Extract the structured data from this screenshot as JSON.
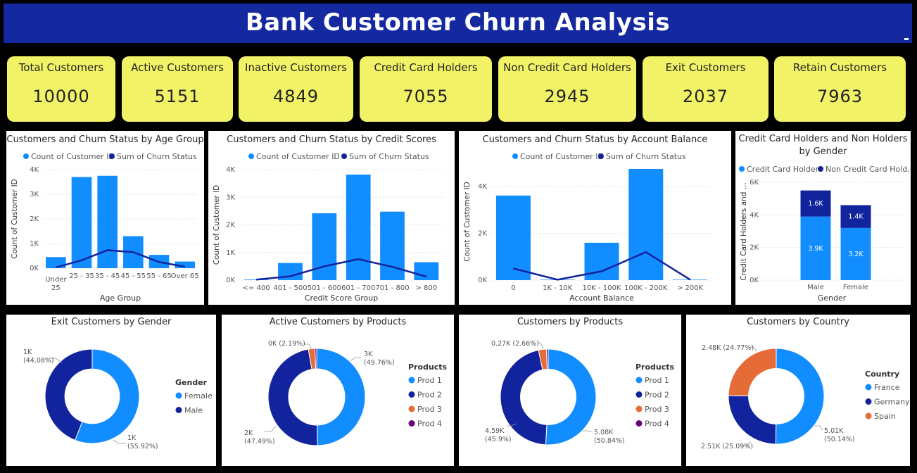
{
  "title": "Bank Customer Churn Analysis",
  "kpis": [
    {
      "label": "Total Customers",
      "value": "10000"
    },
    {
      "label": "Active Customers",
      "value": "5151"
    },
    {
      "label": "Inactive Customers",
      "value": "4849"
    },
    {
      "label": "Credit Card Holders",
      "value": "7055"
    },
    {
      "label": "Non Credit Card Holders",
      "value": "2945"
    },
    {
      "label": "Exit Customers",
      "value": "2037"
    },
    {
      "label": "Retain Customers",
      "value": "7963"
    }
  ],
  "colors": {
    "light": "#118dff",
    "dark": "#12239e",
    "orange": "#e66c37",
    "purple": "#6b007b"
  },
  "chart_data": [
    {
      "id": "age",
      "type": "bar",
      "title": "Customers and Churn Status by Age Group",
      "xlabel": "Age Group",
      "ylabel": "Count of Customer ID",
      "legend": [
        "Count of Customer ID",
        "Sum of Churn Status"
      ],
      "categories": [
        "Under 25",
        "25 - 35",
        "35 - 45",
        "45 - 55",
        "55 - 65",
        "Over 65"
      ],
      "series": [
        {
          "name": "Count of Customer ID",
          "type": "bar",
          "values": [
            450,
            3700,
            3750,
            1300,
            540,
            270
          ]
        },
        {
          "name": "Sum of Churn Status",
          "type": "line",
          "values": [
            30,
            320,
            730,
            650,
            250,
            60
          ]
        }
      ],
      "yticks": [
        "0K",
        "1K",
        "2K",
        "3K",
        "4K"
      ],
      "ylim": [
        0,
        4000
      ]
    },
    {
      "id": "credit",
      "type": "bar",
      "title": "Customers and Churn Status by Credit Scores",
      "xlabel": "Credit Score Group",
      "ylabel": "Count of Customer ID",
      "legend": [
        "Count of Customer ID",
        "Sum of Churn Status"
      ],
      "categories": [
        "<= 400",
        "401 - 500",
        "501 - 600",
        "601 - 700",
        "701 - 800",
        "> 800"
      ],
      "series": [
        {
          "name": "Count of Customer ID",
          "type": "bar",
          "values": [
            20,
            620,
            2420,
            3820,
            2480,
            650
          ]
        },
        {
          "name": "Sum of Churn Status",
          "type": "line",
          "values": [
            20,
            140,
            500,
            760,
            480,
            130
          ]
        }
      ],
      "yticks": [
        "0K",
        "1K",
        "2K",
        "3K",
        "4K"
      ],
      "ylim": [
        0,
        4000
      ]
    },
    {
      "id": "balance",
      "type": "bar",
      "title": "Customers and Churn Status by Account Balance",
      "xlabel": "Account Balance",
      "ylabel": "Count of Customer ID",
      "legend": [
        "Count of Customer ID",
        "Sum of Churn Status"
      ],
      "categories": [
        "0",
        "1K - 10K",
        "10K - 100K",
        "100K - 200K",
        "> 200K"
      ],
      "series": [
        {
          "name": "Count of Customer ID",
          "type": "bar",
          "values": [
            3620,
            20,
            1600,
            4760,
            20
          ]
        },
        {
          "name": "Sum of Churn Status",
          "type": "line",
          "values": [
            500,
            20,
            380,
            1200,
            20
          ]
        }
      ],
      "yticks": [
        "0K",
        "2K",
        "4K"
      ],
      "ylim": [
        0,
        5000
      ]
    },
    {
      "id": "ccgender",
      "type": "bar",
      "stacked": true,
      "title": "Credit Card Holders and Non Holders by Gender",
      "title_lines": [
        "Credit Card Holders and Non Holders",
        "by Gender"
      ],
      "xlabel": "Gender",
      "ylabel": "Credit Card Holders and ...",
      "legend": [
        "Credit Card Holders",
        "Non Credit Card Hold..."
      ],
      "categories": [
        "Male",
        "Female"
      ],
      "series": [
        {
          "name": "Credit Card Holders",
          "values": [
            3900,
            3200
          ],
          "labels": [
            "3.9K",
            "3.2K"
          ]
        },
        {
          "name": "Non Credit Card Holders",
          "values": [
            1600,
            1400
          ],
          "labels": [
            "1.6K",
            "1.4K"
          ]
        }
      ],
      "yticks": [
        "0K",
        "2K",
        "4K",
        "6K"
      ],
      "ylim": [
        0,
        6000
      ]
    },
    {
      "id": "exitgender",
      "type": "pie",
      "title": "Exit Customers by Gender",
      "legend_title": "Gender",
      "labels": [
        "Female",
        "Male"
      ],
      "values": [
        55.92,
        44.08
      ],
      "data_labels": [
        [
          "1K",
          "(55.92%)"
        ],
        [
          "1K",
          "(44.08%)"
        ]
      ]
    },
    {
      "id": "activeprod",
      "type": "pie",
      "title": "Active Customers by Products",
      "legend_title": "Products",
      "labels": [
        "Prod 1",
        "Prod 2",
        "Prod 3",
        "Prod 4"
      ],
      "values": [
        49.76,
        47.49,
        2.19,
        0.56
      ],
      "data_labels": [
        [
          "3K",
          "(49.76%)"
        ],
        [
          "2K",
          "(47.49%)"
        ],
        [
          "0K (2.19%)"
        ],
        []
      ]
    },
    {
      "id": "custprod",
      "type": "pie",
      "title": "Customers by Products",
      "legend_title": "Products",
      "labels": [
        "Prod 1",
        "Prod 2",
        "Prod 3",
        "Prod 4"
      ],
      "values": [
        50.84,
        45.9,
        2.66,
        0.6
      ],
      "data_labels": [
        [
          "5.08K",
          "(50.84%)"
        ],
        [
          "4.59K",
          "(45.9%)"
        ],
        [
          "0.27K (2.66%)"
        ],
        []
      ]
    },
    {
      "id": "country",
      "type": "pie",
      "title": "Customers by Country",
      "legend_title": "Country",
      "labels": [
        "France",
        "Germany",
        "Spain"
      ],
      "values": [
        50.14,
        25.09,
        24.77
      ],
      "data_labels": [
        [
          "5.01K",
          "(50.14%)"
        ],
        [
          "2.51K (25.09%)"
        ],
        [
          "2.48K (24.77%)"
        ]
      ]
    }
  ]
}
